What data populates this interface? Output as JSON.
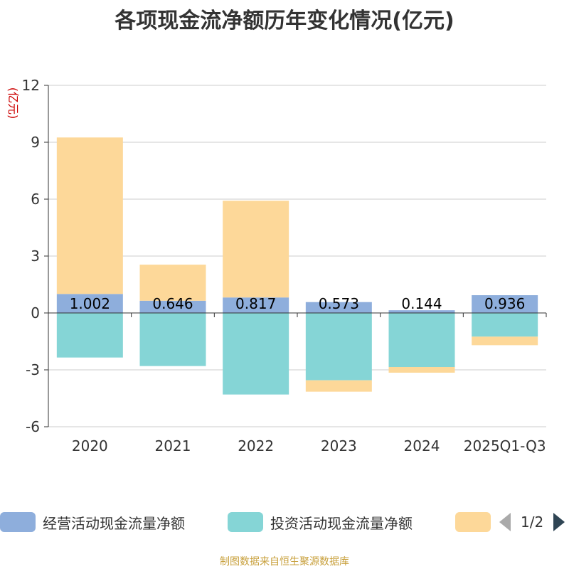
{
  "chart_data": {
    "type": "bar",
    "stacked": true,
    "title": "各项现金流净额历年变化情况(亿元)",
    "ylabel": "(亿元)",
    "xlabel": "",
    "categories": [
      "2020",
      "2021",
      "2022",
      "2023",
      "2024",
      "2025Q1-Q3"
    ],
    "ylim": [
      -6,
      12
    ],
    "yticks": [
      -6,
      -3,
      0,
      3,
      6,
      9,
      12
    ],
    "series": [
      {
        "name": "经营活动现金流量净额",
        "color": "#8eaedc",
        "values": [
          1.002,
          0.646,
          0.817,
          0.573,
          0.144,
          0.936
        ],
        "labels": [
          "1.002",
          "0.646",
          "0.817",
          "0.573",
          "0.144",
          "0.936"
        ]
      },
      {
        "name": "投资活动现金流量净额",
        "color": "#85d5d6",
        "values": [
          -2.35,
          -2.8,
          -4.3,
          -3.55,
          -2.85,
          -1.25
        ]
      },
      {
        "name": "",
        "color": "#fdd899",
        "values": [
          8.25,
          1.9,
          5.1,
          -0.6,
          -0.3,
          -0.45
        ]
      }
    ],
    "legend_page": "1/2",
    "source": "制图数据来自恒生聚源数据库"
  }
}
